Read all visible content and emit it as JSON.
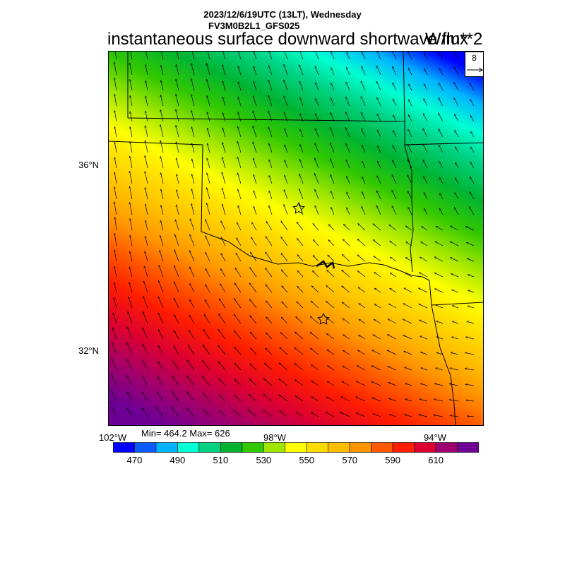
{
  "header": {
    "datetime": "2023/12/6/19UTC (13LT), Wednesday",
    "model": "FV3M0B2L1_GFS025",
    "variable": "instantaneous surface downward shortwave flux",
    "units": "W/m**2"
  },
  "stats": "Min= 464.2 Max= 626",
  "vector_ref": {
    "value": "8"
  },
  "axes": {
    "lat_labels": [
      "36°N",
      "32°N"
    ],
    "lon_labels": [
      "102°W",
      "98°W",
      "94°W"
    ]
  },
  "colorbar": {
    "labels": [
      "470",
      "490",
      "510",
      "530",
      "550",
      "570",
      "590",
      "610"
    ],
    "colors": [
      "#0000ff",
      "#0b5cff",
      "#00b4ff",
      "#00ffd2",
      "#00d282",
      "#00b432",
      "#32c800",
      "#a0e600",
      "#ffff00",
      "#ffdc00",
      "#ffbe00",
      "#ff9600",
      "#ff5a00",
      "#ff1e00",
      "#dc0032",
      "#a0006e",
      "#6e0096"
    ]
  },
  "markers": [
    "star",
    "star"
  ]
}
